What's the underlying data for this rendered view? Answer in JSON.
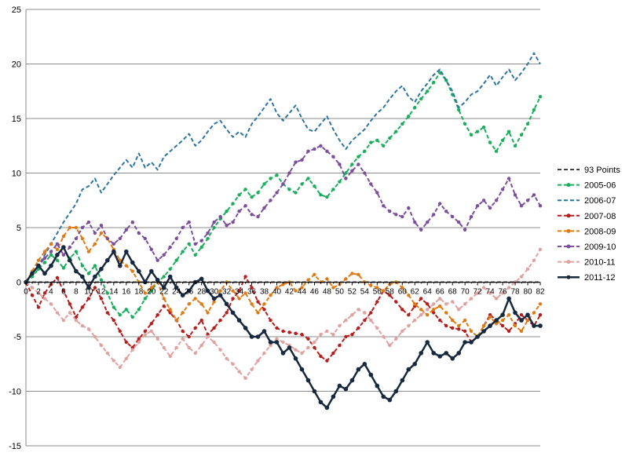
{
  "chart_data": {
    "type": "line",
    "title": "",
    "xlabel": "",
    "ylabel": "",
    "ylim": [
      -15,
      25
    ],
    "y_ticks": [
      "-15",
      "-10",
      "-5",
      "0",
      "5",
      "10",
      "15",
      "20",
      "25"
    ],
    "xlim": [
      0,
      82
    ],
    "x_tick_labels": [
      "0",
      "2",
      "4",
      "6",
      "8",
      "10",
      "12",
      "14",
      "16",
      "18",
      "20",
      "22",
      "24",
      "26",
      "28",
      "30",
      "32",
      "34",
      "36",
      "38",
      "40",
      "42",
      "44",
      "46",
      "48",
      "50",
      "52",
      "54",
      "56",
      "58",
      "60",
      "62",
      "64",
      "66",
      "68",
      "70",
      "72",
      "74",
      "76",
      "78",
      "80",
      "82"
    ],
    "grid": "horizontal",
    "legend_position": "right",
    "series": [
      {
        "name": "93 Points",
        "color": "#404040",
        "dash": "dashed",
        "marker": false,
        "width": 2,
        "x": [
          0,
          82
        ],
        "y": [
          0,
          0
        ]
      },
      {
        "name": "2005-06",
        "color": "#1aaf5d",
        "dash": "dashed",
        "marker": true,
        "width": 2,
        "x": [
          0,
          1,
          2,
          3,
          4,
          5,
          6,
          7,
          8,
          9,
          10,
          11,
          12,
          13,
          14,
          15,
          16,
          17,
          18,
          19,
          20,
          21,
          22,
          23,
          24,
          25,
          26,
          27,
          28,
          29,
          30,
          31,
          32,
          33,
          34,
          35,
          36,
          37,
          38,
          39,
          40,
          41,
          42,
          43,
          44,
          45,
          46,
          47,
          48,
          49,
          50,
          51,
          52,
          53,
          54,
          55,
          56,
          57,
          58,
          59,
          60,
          61,
          62,
          63,
          64,
          65,
          66,
          67,
          68,
          69,
          70,
          71,
          72,
          73,
          74,
          75,
          76,
          77,
          78,
          79,
          80,
          81,
          82
        ],
        "y": [
          0,
          0.5,
          1.2,
          1.8,
          2.5,
          2.0,
          1.3,
          2.2,
          2.8,
          1.5,
          0.8,
          1.5,
          0.2,
          -1.0,
          -2.3,
          -3.0,
          -2.5,
          -3.2,
          -2.5,
          -1.5,
          -0.8,
          0.0,
          0.5,
          1.2,
          2.0,
          2.8,
          3.5,
          2.5,
          3.2,
          4.0,
          5.0,
          5.8,
          6.5,
          7.2,
          8.0,
          8.5,
          7.8,
          8.2,
          9.0,
          9.5,
          9.8,
          9.0,
          8.5,
          8.2,
          9.0,
          9.5,
          8.8,
          8.0,
          7.8,
          8.5,
          9.2,
          10.0,
          10.8,
          11.5,
          12.0,
          12.8,
          13.0,
          12.5,
          13.2,
          13.8,
          14.5,
          15.2,
          16.0,
          16.8,
          17.5,
          18.3,
          19.2,
          18.5,
          17.2,
          15.8,
          14.5,
          13.5,
          13.8,
          14.2,
          12.8,
          12.0,
          13.0,
          13.8,
          12.5,
          13.5,
          14.5,
          15.8,
          17.0
        ]
      },
      {
        "name": "2006-07",
        "color": "#2e75a0",
        "dash": "dashed",
        "marker": false,
        "width": 2,
        "x": [
          0,
          2,
          4,
          6,
          8,
          9,
          10,
          11,
          12,
          13,
          14,
          15,
          16,
          17,
          18,
          19,
          20,
          21,
          22,
          23,
          24,
          25,
          26,
          27,
          28,
          29,
          30,
          31,
          32,
          33,
          34,
          35,
          36,
          37,
          38,
          39,
          40,
          41,
          42,
          43,
          44,
          45,
          46,
          47,
          48,
          49,
          50,
          51,
          52,
          53,
          54,
          55,
          56,
          57,
          58,
          59,
          60,
          61,
          62,
          63,
          64,
          65,
          66,
          67,
          68,
          69,
          70,
          71,
          72,
          73,
          74,
          75,
          76,
          77,
          78,
          79,
          80,
          81,
          82
        ],
        "y": [
          0,
          1.5,
          3.5,
          5.5,
          7.2,
          8.5,
          8.8,
          9.5,
          8.2,
          9.0,
          9.8,
          10.5,
          11.2,
          10.5,
          11.8,
          10.5,
          11.0,
          10.3,
          11.5,
          12.0,
          12.5,
          13.0,
          13.6,
          12.5,
          13.0,
          13.8,
          14.5,
          14.8,
          14.0,
          13.3,
          13.8,
          13.3,
          14.5,
          15.2,
          16.0,
          16.8,
          15.5,
          14.8,
          15.5,
          16.2,
          15.0,
          14.0,
          13.8,
          14.5,
          15.2,
          14.0,
          13.0,
          12.2,
          13.0,
          13.5,
          14.0,
          14.8,
          15.5,
          16.0,
          16.8,
          17.5,
          18.0,
          17.0,
          16.5,
          17.5,
          18.2,
          19.0,
          19.5,
          18.5,
          17.5,
          16.0,
          16.5,
          17.2,
          17.5,
          18.2,
          19.0,
          18.0,
          18.8,
          19.5,
          18.5,
          19.2,
          20.0,
          21.0,
          20.0
        ]
      },
      {
        "name": "2007-08",
        "color": "#b81c1c",
        "dash": "dashed",
        "marker": true,
        "width": 2,
        "x": [
          0,
          1,
          2,
          3,
          4,
          5,
          6,
          7,
          8,
          9,
          10,
          11,
          12,
          13,
          14,
          15,
          16,
          17,
          18,
          19,
          20,
          21,
          22,
          23,
          24,
          25,
          26,
          27,
          28,
          29,
          30,
          31,
          32,
          33,
          34,
          35,
          36,
          37,
          38,
          39,
          40,
          41,
          42,
          43,
          44,
          45,
          46,
          47,
          48,
          49,
          50,
          51,
          52,
          53,
          54,
          55,
          56,
          57,
          58,
          59,
          60,
          61,
          62,
          63,
          64,
          65,
          66,
          67,
          68,
          69,
          70,
          71,
          72,
          73,
          74,
          75,
          76,
          77,
          78,
          79,
          80,
          81,
          82
        ],
        "y": [
          0,
          -1.2,
          -2.3,
          -1.0,
          -0.2,
          0.4,
          -0.8,
          -2.0,
          -3.2,
          -2.3,
          -1.5,
          -0.5,
          -1.5,
          -2.8,
          -3.5,
          -4.5,
          -5.5,
          -6.0,
          -5.2,
          -4.5,
          -3.8,
          -3.0,
          -2.2,
          -2.8,
          -3.5,
          -4.5,
          -5.0,
          -4.2,
          -3.5,
          -4.8,
          -4.2,
          -3.5,
          -2.8,
          -1.5,
          -0.8,
          0.5,
          -0.5,
          -1.8,
          -2.5,
          -3.5,
          -4.2,
          -4.5,
          -4.6,
          -4.7,
          -4.8,
          -5.2,
          -6.0,
          -6.8,
          -7.2,
          -6.5,
          -5.8,
          -5.0,
          -4.8,
          -4.2,
          -3.5,
          -2.8,
          -1.8,
          -0.8,
          -1.2,
          -1.8,
          -2.5,
          -3.0,
          -2.2,
          -1.5,
          -2.0,
          -2.8,
          -3.5,
          -4.0,
          -4.2,
          -4.3,
          -4.5,
          -5.5,
          -5.0,
          -4.0,
          -3.0,
          -3.5,
          -4.0,
          -4.5,
          -3.8,
          -3.0,
          -3.5,
          -4.0,
          -3.0
        ]
      },
      {
        "name": "2008-09",
        "color": "#e07b14",
        "dash": "dashed",
        "marker": true,
        "width": 2,
        "x": [
          0,
          1,
          2,
          3,
          4,
          5,
          6,
          7,
          8,
          9,
          10,
          11,
          12,
          13,
          14,
          15,
          16,
          17,
          18,
          19,
          20,
          21,
          22,
          23,
          24,
          25,
          26,
          27,
          28,
          29,
          30,
          31,
          32,
          33,
          34,
          35,
          36,
          37,
          38,
          39,
          40,
          41,
          42,
          43,
          44,
          45,
          46,
          47,
          48,
          49,
          50,
          51,
          52,
          53,
          54,
          55,
          56,
          57,
          58,
          59,
          60,
          61,
          62,
          63,
          64,
          65,
          66,
          67,
          68,
          69,
          70,
          71,
          72,
          73,
          74,
          75,
          76,
          77,
          78,
          79,
          80,
          81,
          82
        ],
        "y": [
          0,
          1.0,
          2.0,
          2.8,
          3.5,
          3.0,
          4.2,
          5.0,
          5.0,
          4.0,
          2.8,
          3.5,
          4.5,
          4.0,
          3.0,
          2.0,
          1.5,
          1.0,
          0.0,
          -1.0,
          -0.5,
          0.0,
          -1.5,
          -2.5,
          -3.5,
          -2.8,
          -2.0,
          -1.5,
          -2.0,
          -2.8,
          -1.8,
          -0.8,
          0.0,
          -0.8,
          -1.5,
          -1.0,
          -2.0,
          -2.8,
          -2.0,
          -1.2,
          -0.5,
          -0.2,
          0.0,
          -0.8,
          -0.5,
          0.2,
          0.7,
          0.0,
          0.3,
          -0.5,
          -0.2,
          0.3,
          0.8,
          0.7,
          0.0,
          -0.3,
          -0.5,
          -0.8,
          -0.2,
          0.0,
          -0.5,
          -1.2,
          -2.0,
          -2.5,
          -3.0,
          -2.5,
          -2.2,
          -2.8,
          -3.5,
          -4.0,
          -3.5,
          -4.5,
          -5.0,
          -4.0,
          -3.2,
          -3.8,
          -3.5,
          -3.0,
          -4.0,
          -4.5,
          -3.5,
          -2.8,
          -2.0
        ]
      },
      {
        "name": "2009-10",
        "color": "#7b4f9d",
        "dash": "dashed",
        "marker": true,
        "width": 2,
        "x": [
          0,
          1,
          2,
          3,
          4,
          5,
          6,
          7,
          8,
          9,
          10,
          11,
          12,
          13,
          14,
          15,
          16,
          17,
          18,
          19,
          20,
          21,
          22,
          23,
          24,
          25,
          26,
          27,
          28,
          29,
          30,
          31,
          32,
          33,
          34,
          35,
          36,
          37,
          38,
          39,
          40,
          41,
          42,
          43,
          44,
          45,
          46,
          47,
          48,
          49,
          50,
          51,
          52,
          53,
          54,
          55,
          56,
          57,
          58,
          59,
          60,
          61,
          62,
          63,
          64,
          65,
          66,
          67,
          68,
          69,
          70,
          71,
          72,
          73,
          74,
          75,
          76,
          77,
          78,
          79,
          80,
          81,
          82
        ],
        "y": [
          0,
          0.8,
          1.5,
          2.2,
          2.8,
          3.5,
          2.5,
          3.2,
          4.0,
          5.0,
          5.5,
          4.5,
          5.2,
          4.0,
          3.5,
          4.0,
          4.8,
          5.5,
          4.5,
          4.0,
          3.0,
          2.0,
          2.5,
          3.2,
          4.0,
          5.0,
          5.5,
          3.5,
          3.8,
          4.5,
          5.5,
          6.0,
          5.2,
          5.5,
          6.5,
          7.0,
          6.2,
          6.0,
          6.8,
          7.5,
          8.2,
          9.0,
          10.0,
          11.0,
          11.2,
          12.0,
          12.2,
          12.5,
          12.0,
          11.5,
          10.8,
          9.5,
          10.2,
          10.8,
          10.0,
          9.0,
          8.2,
          7.0,
          6.5,
          6.2,
          6.0,
          6.8,
          5.5,
          4.8,
          5.5,
          6.2,
          7.2,
          6.5,
          6.0,
          5.5,
          4.8,
          6.0,
          7.0,
          7.5,
          6.8,
          7.5,
          8.5,
          9.5,
          8.0,
          7.0,
          7.5,
          8.0,
          7.0
        ]
      },
      {
        "name": "2010-11",
        "color": "#e0a2a0",
        "dash": "dashed",
        "marker": true,
        "width": 2,
        "x": [
          0,
          1,
          2,
          3,
          4,
          5,
          6,
          7,
          8,
          9,
          10,
          11,
          12,
          13,
          14,
          15,
          16,
          17,
          18,
          19,
          20,
          21,
          22,
          23,
          24,
          25,
          26,
          27,
          28,
          29,
          30,
          31,
          32,
          33,
          34,
          35,
          36,
          37,
          38,
          39,
          40,
          41,
          42,
          43,
          44,
          45,
          46,
          47,
          48,
          49,
          50,
          51,
          52,
          53,
          54,
          55,
          56,
          57,
          58,
          59,
          60,
          61,
          62,
          63,
          64,
          65,
          66,
          67,
          68,
          69,
          70,
          71,
          72,
          73,
          74,
          75,
          76,
          77,
          78,
          79,
          80,
          81,
          82
        ],
        "y": [
          0,
          -0.5,
          -1.0,
          -1.5,
          -2.0,
          -2.8,
          -3.5,
          -2.8,
          -3.5,
          -4.0,
          -4.3,
          -5.0,
          -5.8,
          -6.5,
          -7.2,
          -7.8,
          -7.0,
          -6.2,
          -5.5,
          -4.8,
          -4.5,
          -5.2,
          -6.0,
          -6.8,
          -6.0,
          -5.2,
          -6.0,
          -6.5,
          -5.8,
          -5.0,
          -5.5,
          -6.2,
          -7.0,
          -7.5,
          -8.2,
          -8.8,
          -8.0,
          -7.2,
          -6.5,
          -5.8,
          -5.2,
          -5.5,
          -5.8,
          -6.2,
          -6.5,
          -6.0,
          -5.5,
          -4.8,
          -4.5,
          -4.8,
          -4.0,
          -3.5,
          -3.0,
          -2.5,
          -2.8,
          -3.5,
          -4.2,
          -5.0,
          -5.8,
          -5.2,
          -4.5,
          -4.0,
          -3.5,
          -3.0,
          -2.5,
          -2.0,
          -1.5,
          -2.0,
          -1.8,
          -2.5,
          -2.0,
          -1.5,
          -1.0,
          -0.5,
          -1.0,
          -1.5,
          -1.0,
          -0.5,
          0.0,
          0.5,
          1.2,
          2.0,
          3.0
        ]
      },
      {
        "name": "2011-12",
        "color": "#17283f",
        "dash": "solid",
        "marker": true,
        "width": 2.5,
        "x": [
          0,
          1,
          2,
          3,
          4,
          5,
          6,
          7,
          8,
          9,
          10,
          11,
          12,
          13,
          14,
          15,
          16,
          17,
          18,
          19,
          20,
          21,
          22,
          23,
          24,
          25,
          26,
          27,
          28,
          29,
          30,
          31,
          32,
          33,
          34,
          35,
          36,
          37,
          38,
          39,
          40,
          41,
          42,
          43,
          44,
          45,
          46,
          47,
          48,
          49,
          50,
          51,
          52,
          53,
          54,
          55,
          56,
          57,
          58,
          59,
          60,
          61,
          62,
          63,
          64,
          65,
          66,
          67,
          68,
          69,
          70,
          71,
          72,
          73,
          74,
          75,
          76,
          77,
          78,
          79,
          80,
          81,
          82
        ],
        "y": [
          0,
          0.8,
          1.5,
          0.8,
          1.5,
          2.5,
          3.2,
          2.0,
          1.0,
          0.5,
          -0.5,
          0.5,
          1.2,
          2.0,
          2.8,
          1.5,
          2.8,
          1.8,
          1.0,
          0.0,
          1.0,
          0.2,
          -0.5,
          0.5,
          -0.5,
          -1.2,
          -0.8,
          0.0,
          0.3,
          -0.8,
          -1.5,
          -1.2,
          -2.0,
          -2.8,
          -3.5,
          -4.2,
          -5.0,
          -5.0,
          -4.5,
          -5.5,
          -5.5,
          -6.5,
          -6.0,
          -7.0,
          -8.0,
          -9.0,
          -10.0,
          -11.0,
          -11.5,
          -10.5,
          -9.5,
          -9.8,
          -9.0,
          -8.0,
          -7.5,
          -8.5,
          -9.5,
          -10.5,
          -10.8,
          -10.0,
          -9.0,
          -8.0,
          -7.5,
          -6.5,
          -5.5,
          -6.5,
          -6.8,
          -6.5,
          -7.0,
          -6.5,
          -5.5,
          -5.5,
          -5.0,
          -4.5,
          -4.0,
          -3.5,
          -3.0,
          -1.5,
          -2.8,
          -3.5,
          -3.0,
          -4.0,
          -4.0
        ]
      }
    ]
  }
}
